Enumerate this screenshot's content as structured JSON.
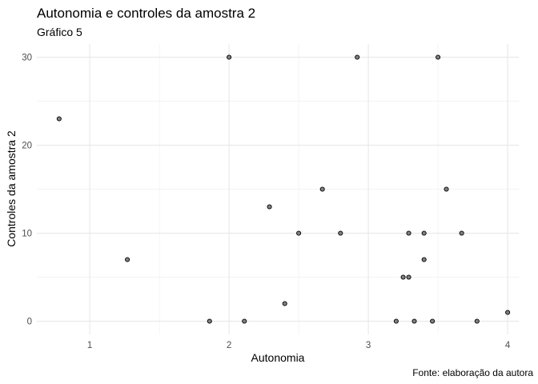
{
  "chart_data": {
    "type": "scatter",
    "title": "Autonomia e controles da amostra 2",
    "subtitle": "Gráfico 5",
    "caption": "Fonte: elaboração da autora",
    "xlabel": "Autonomia",
    "ylabel": "Controles da amostra 2",
    "xlim": [
      0.62,
      4.08
    ],
    "ylim": [
      -1.5,
      31.5
    ],
    "x_ticks": [
      1,
      2,
      3,
      4
    ],
    "y_ticks": [
      0,
      10,
      20,
      30
    ],
    "grid": true,
    "point_color": "#808080",
    "point_border": "#000000",
    "points": [
      {
        "x": 0.78,
        "y": 23
      },
      {
        "x": 1.27,
        "y": 7
      },
      {
        "x": 1.86,
        "y": 0
      },
      {
        "x": 2.0,
        "y": 30
      },
      {
        "x": 2.11,
        "y": 0
      },
      {
        "x": 2.29,
        "y": 13
      },
      {
        "x": 2.4,
        "y": 2
      },
      {
        "x": 2.5,
        "y": 10
      },
      {
        "x": 2.67,
        "y": 15
      },
      {
        "x": 2.8,
        "y": 10
      },
      {
        "x": 2.92,
        "y": 30
      },
      {
        "x": 3.2,
        "y": 0
      },
      {
        "x": 3.25,
        "y": 5
      },
      {
        "x": 3.29,
        "y": 10
      },
      {
        "x": 3.29,
        "y": 5
      },
      {
        "x": 3.33,
        "y": 0
      },
      {
        "x": 3.4,
        "y": 10
      },
      {
        "x": 3.4,
        "y": 7
      },
      {
        "x": 3.46,
        "y": 0
      },
      {
        "x": 3.5,
        "y": 30
      },
      {
        "x": 3.56,
        "y": 15
      },
      {
        "x": 3.67,
        "y": 10
      },
      {
        "x": 3.78,
        "y": 0
      },
      {
        "x": 4.0,
        "y": 1
      }
    ]
  }
}
